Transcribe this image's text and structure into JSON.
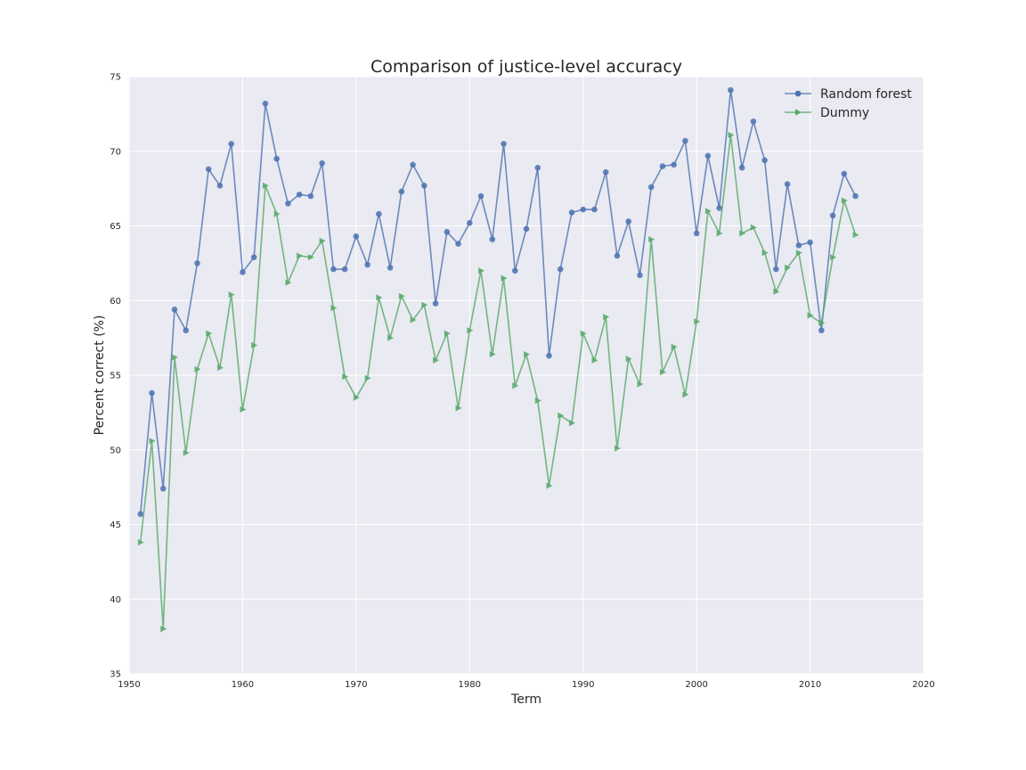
{
  "chart_data": {
    "type": "line",
    "title": "Comparison of justice-level accuracy",
    "xlabel": "Term",
    "ylabel": "Percent correct (%)",
    "xlim": [
      1950,
      2020
    ],
    "ylim": [
      35,
      75
    ],
    "xticks": [
      1950,
      1960,
      1970,
      1980,
      1990,
      2000,
      2010,
      2020
    ],
    "yticks": [
      35,
      40,
      45,
      50,
      55,
      60,
      65,
      70,
      75
    ],
    "grid": true,
    "legend_position": "top-right",
    "x": [
      1951,
      1952,
      1953,
      1954,
      1955,
      1956,
      1957,
      1958,
      1959,
      1960,
      1961,
      1962,
      1963,
      1964,
      1965,
      1966,
      1967,
      1968,
      1969,
      1970,
      1971,
      1972,
      1973,
      1974,
      1975,
      1976,
      1977,
      1978,
      1979,
      1980,
      1981,
      1982,
      1983,
      1984,
      1985,
      1986,
      1987,
      1988,
      1989,
      1990,
      1991,
      1992,
      1993,
      1994,
      1995,
      1996,
      1997,
      1998,
      1999,
      2000,
      2001,
      2002,
      2003,
      2004,
      2005,
      2006,
      2007,
      2008,
      2009,
      2010,
      2011,
      2012,
      2013,
      2014
    ],
    "series": [
      {
        "name": "Random forest",
        "color": "#4c72b0",
        "marker": "circle",
        "values": [
          45.7,
          53.8,
          47.4,
          59.4,
          58.0,
          62.5,
          68.8,
          67.7,
          70.5,
          61.9,
          62.9,
          73.2,
          69.5,
          66.5,
          67.1,
          67.0,
          69.2,
          62.1,
          62.1,
          64.3,
          62.4,
          65.8,
          62.2,
          67.3,
          69.1,
          67.7,
          59.8,
          64.6,
          63.8,
          65.2,
          67.0,
          64.1,
          70.5,
          62.0,
          64.8,
          68.9,
          56.3,
          62.1,
          65.9,
          66.1,
          66.1,
          68.6,
          63.0,
          65.3,
          61.7,
          67.6,
          69.0,
          69.1,
          70.7,
          64.5,
          69.7,
          66.2,
          74.1,
          68.9,
          72.0,
          69.4,
          62.1,
          67.8,
          63.7,
          63.9,
          58.0,
          65.7,
          68.5,
          67.0
        ]
      },
      {
        "name": "Dummy",
        "color": "#55a868",
        "marker": "triangle-right",
        "values": [
          43.8,
          50.6,
          38.0,
          56.2,
          49.8,
          55.4,
          57.8,
          55.5,
          60.4,
          52.7,
          57.0,
          67.7,
          65.8,
          61.2,
          63.0,
          62.9,
          64.0,
          59.5,
          54.9,
          53.5,
          54.8,
          60.2,
          57.5,
          60.3,
          58.7,
          59.7,
          56.0,
          57.8,
          52.8,
          58.0,
          62.0,
          56.4,
          61.5,
          54.3,
          56.4,
          53.3,
          47.6,
          52.3,
          51.8,
          57.8,
          56.0,
          58.9,
          50.1,
          56.1,
          54.4,
          64.1,
          55.2,
          56.9,
          53.7,
          58.6,
          66.0,
          64.5,
          71.1,
          64.5,
          64.9,
          63.2,
          60.6,
          62.2,
          63.2,
          59.0,
          58.5,
          62.9,
          66.7,
          64.4
        ]
      }
    ]
  }
}
